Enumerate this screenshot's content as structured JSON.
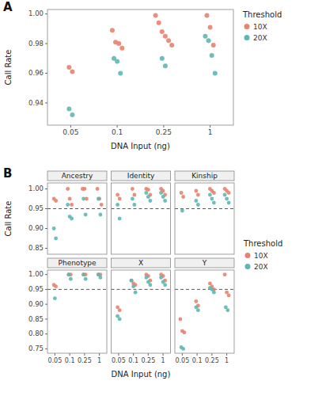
{
  "chart_data": [
    {
      "type": "scatter",
      "panel_label": "A",
      "categories": [
        "0.05",
        "0.1",
        "0.25",
        "1"
      ],
      "series": [
        {
          "name": "10X",
          "color": "#E8836F",
          "values": [
            [
              0.964,
              0.961
            ],
            [
              0.989,
              0.981,
              0.98,
              0.977
            ],
            [
              0.999,
              0.994,
              0.988,
              0.985,
              0.982,
              0.979
            ],
            [
              0.999,
              0.991,
              0.979
            ]
          ]
        },
        {
          "name": "20X",
          "color": "#5CB8B2",
          "values": [
            [
              0.936,
              0.932
            ],
            [
              0.97,
              0.968,
              0.96
            ],
            [
              0.97,
              0.965
            ],
            [
              0.985,
              0.982,
              0.972,
              0.96
            ]
          ]
        }
      ],
      "xlabel": "DNA Input (ng)",
      "ylabel": "Call Rate",
      "ylim": [
        0.925,
        1.003
      ],
      "yticks": [
        0.94,
        0.96,
        0.98,
        {
          "value": 1.0,
          "label": "1.00"
        }
      ],
      "legend": "upper right",
      "legend_title": "Threshold",
      "grid": false
    },
    {
      "type": "scatter",
      "title": "Ancestry",
      "panel_label": "B",
      "ylabel": "Call Rate",
      "categories": [
        "0.05",
        "0.1",
        "0.25",
        "1"
      ],
      "series": [
        {
          "color": "#E8836F",
          "values": [
            [
              0.975,
              0.97
            ],
            [
              1.0,
              0.975,
              0.96
            ],
            [
              1.0,
              1.0,
              0.975
            ],
            [
              1.0,
              0.975,
              0.96
            ]
          ]
        },
        {
          "color": "#5CB8B2",
          "values": [
            [
              0.9,
              0.875
            ],
            [
              0.96,
              0.93,
              0.925
            ],
            [
              0.975,
              0.935
            ],
            [
              0.975,
              0.935
            ]
          ]
        }
      ],
      "reference_line": 0.95,
      "ylim": [
        0.835,
        1.015
      ],
      "yticks": [
        0.85,
        {
          "value": 0.9,
          "label": "0.90"
        },
        0.95,
        {
          "value": 1.0,
          "label": "1.00"
        }
      ],
      "tick_labels": "y",
      "grid": false
    },
    {
      "type": "scatter",
      "title": "Identity",
      "categories": [
        "0.05",
        "0.1",
        "0.25",
        "1"
      ],
      "series": [
        {
          "color": "#E8836F",
          "values": [
            [
              0.985,
              0.975
            ],
            [
              1.0,
              0.985
            ],
            [
              1.0,
              0.998,
              0.985
            ],
            [
              1.0,
              0.995,
              0.985
            ]
          ]
        },
        {
          "color": "#5CB8B2",
          "values": [
            [
              0.96,
              0.925
            ],
            [
              0.975,
              0.96
            ],
            [
              0.99,
              0.98,
              0.97
            ],
            [
              0.99,
              0.98,
              0.97
            ]
          ]
        }
      ],
      "reference_line": 0.95,
      "ylim": [
        0.835,
        1.015
      ],
      "tick_labels": false,
      "grid": false
    },
    {
      "type": "scatter",
      "title": "Kinship",
      "categories": [
        "0.05",
        "0.1",
        "0.25",
        "1"
      ],
      "series": [
        {
          "name": "10X",
          "color": "#E8836F",
          "values": [
            [
              0.99,
              0.98
            ],
            [
              0.995,
              0.985
            ],
            [
              1.0,
              0.995,
              0.99
            ],
            [
              1.0,
              0.995,
              0.99
            ]
          ]
        },
        {
          "name": "20X",
          "color": "#5CB8B2",
          "values": [
            [
              0.945
            ],
            [
              0.97,
              0.96
            ],
            [
              0.985,
              0.975,
              0.965
            ],
            [
              0.985,
              0.975,
              0.965
            ]
          ]
        }
      ],
      "reference_line": 0.95,
      "ylim": [
        0.835,
        1.015
      ],
      "tick_labels": false,
      "legend": "lower right",
      "legend_title": "Threshold",
      "grid": false
    },
    {
      "type": "scatter",
      "title": "Phenotype",
      "categories": [
        "0.05",
        "0.1",
        "0.25",
        "1"
      ],
      "series": [
        {
          "color": "#E8836F",
          "values": [
            [
              0.965,
              0.96
            ],
            [
              1.0,
              1.0
            ],
            [
              1.0,
              1.0
            ],
            [
              1.0,
              1.0
            ]
          ]
        },
        {
          "color": "#5CB8B2",
          "values": [
            [
              0.92
            ],
            [
              1.0,
              0.985
            ],
            [
              1.0,
              0.985
            ],
            [
              1.0,
              0.99
            ]
          ]
        }
      ],
      "reference_line": 0.95,
      "ylim": [
        0.735,
        1.015
      ],
      "yticks": [
        0.75,
        {
          "value": 0.8,
          "label": "0.80"
        },
        0.85,
        {
          "value": 0.9,
          "label": "0.90"
        },
        0.95,
        {
          "value": 1.0,
          "label": "1.00"
        }
      ],
      "tick_labels": true,
      "grid": false
    },
    {
      "type": "scatter",
      "title": "X",
      "xlabel": "DNA Input (ng)",
      "categories": [
        "0.05",
        "0.1",
        "0.25",
        "1"
      ],
      "series": [
        {
          "color": "#E8836F",
          "values": [
            [
              0.89,
              0.88
            ],
            [
              0.98,
              0.97,
              0.965
            ],
            [
              1.0,
              0.995,
              0.98
            ],
            [
              1.0,
              0.995,
              0.98
            ]
          ]
        },
        {
          "color": "#5CB8B2",
          "values": [
            [
              0.86,
              0.85
            ],
            [
              0.98,
              0.96,
              0.94
            ],
            [
              0.99,
              0.975,
              0.965
            ],
            [
              0.99,
              0.975,
              0.965
            ]
          ]
        }
      ],
      "reference_line": 0.95,
      "ylim": [
        0.735,
        1.015
      ],
      "tick_labels": "x",
      "grid": false
    },
    {
      "type": "scatter",
      "title": "Y",
      "categories": [
        "0.05",
        "0.1",
        "0.25",
        "1"
      ],
      "series": [
        {
          "color": "#E8836F",
          "values": [
            [
              0.85,
              0.81,
              0.805
            ],
            [
              0.91,
              0.895
            ],
            [
              0.97,
              0.96,
              0.95
            ],
            [
              1.0,
              0.94,
              0.93
            ]
          ]
        },
        {
          "color": "#5CB8B2",
          "values": [
            [
              0.755,
              0.75
            ],
            [
              0.89,
              0.88
            ],
            [
              0.955,
              0.95,
              0.94
            ],
            [
              0.89,
              0.88
            ]
          ]
        }
      ],
      "reference_line": 0.95,
      "ylim": [
        0.735,
        1.015
      ],
      "tick_labels": "x",
      "grid": false
    }
  ]
}
